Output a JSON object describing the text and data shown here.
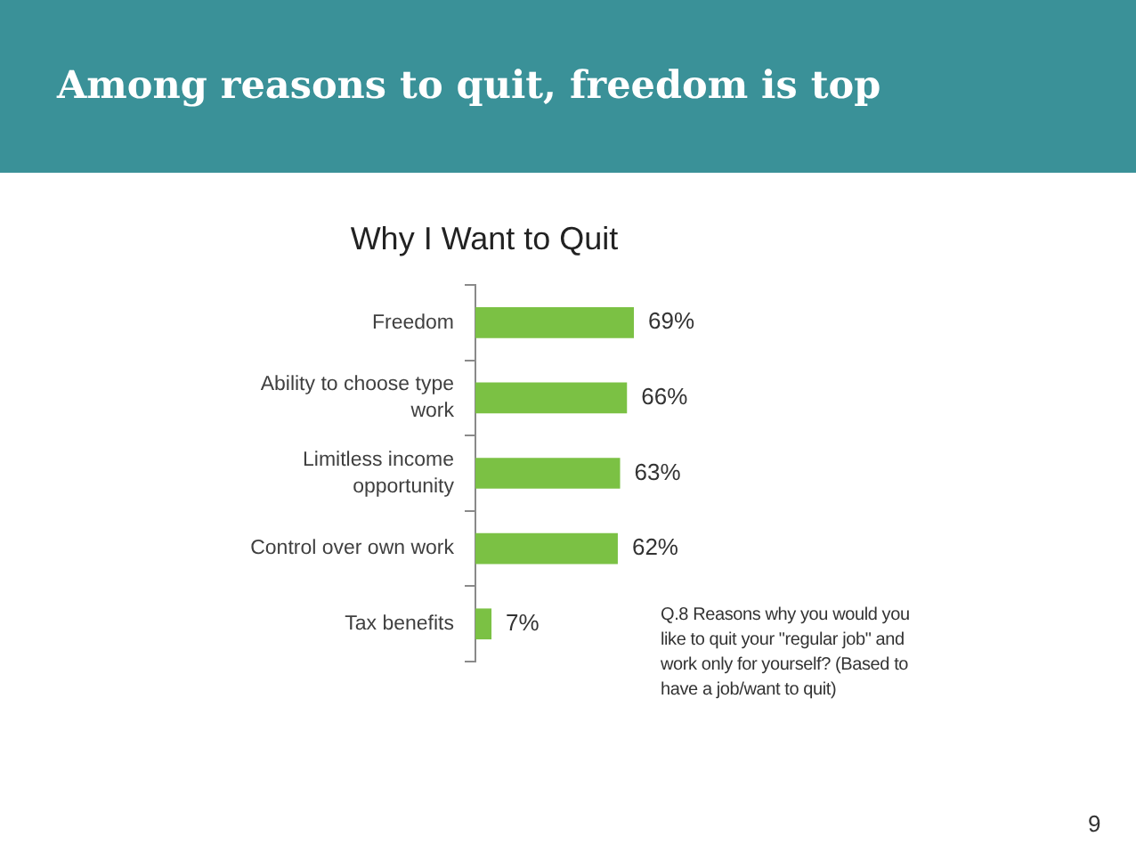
{
  "chart_data": {
    "type": "bar",
    "orientation": "horizontal",
    "title": "Among reasons to quit, freedom is top",
    "subtitle": "Why I Want to Quit",
    "categories": [
      "Freedom",
      "Ability to choose type work",
      "Limitless income opportunity",
      "Control over own work",
      "Tax benefits"
    ],
    "values": [
      69,
      66,
      63,
      62,
      7
    ],
    "value_labels": [
      "69%",
      "66%",
      "63%",
      "62%",
      "7%"
    ],
    "color": "#7bc144",
    "tick_labels": "y",
    "annotations": [
      "Q.8 Reasons why you would you like to quit your \"regular job\" and work only for yourself? (Based to have a job/want to quit)",
      "9"
    ]
  }
}
